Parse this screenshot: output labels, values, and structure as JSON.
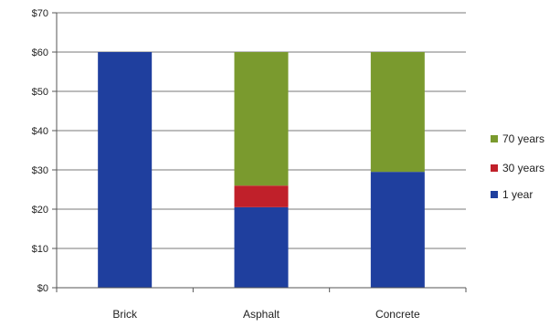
{
  "chart_data": {
    "type": "bar",
    "stacked": true,
    "categories": [
      "Brick",
      "Asphalt",
      "Concrete"
    ],
    "series": [
      {
        "name": "1 year",
        "values": [
          60,
          20.5,
          29.5
        ],
        "color": "#1f3f9e"
      },
      {
        "name": "30 years",
        "values": [
          0,
          5.5,
          0
        ],
        "color": "#c0202a"
      },
      {
        "name": "70 years",
        "values": [
          0,
          34,
          30.5
        ],
        "color": "#7a9a2e"
      }
    ],
    "ylim": [
      0,
      70
    ],
    "yticks": [
      0,
      10,
      20,
      30,
      40,
      50,
      60,
      70
    ],
    "ytick_prefix": "$",
    "grid": true,
    "legend": "right",
    "legend_order": [
      "70 years",
      "30 years",
      "1 year"
    ]
  }
}
